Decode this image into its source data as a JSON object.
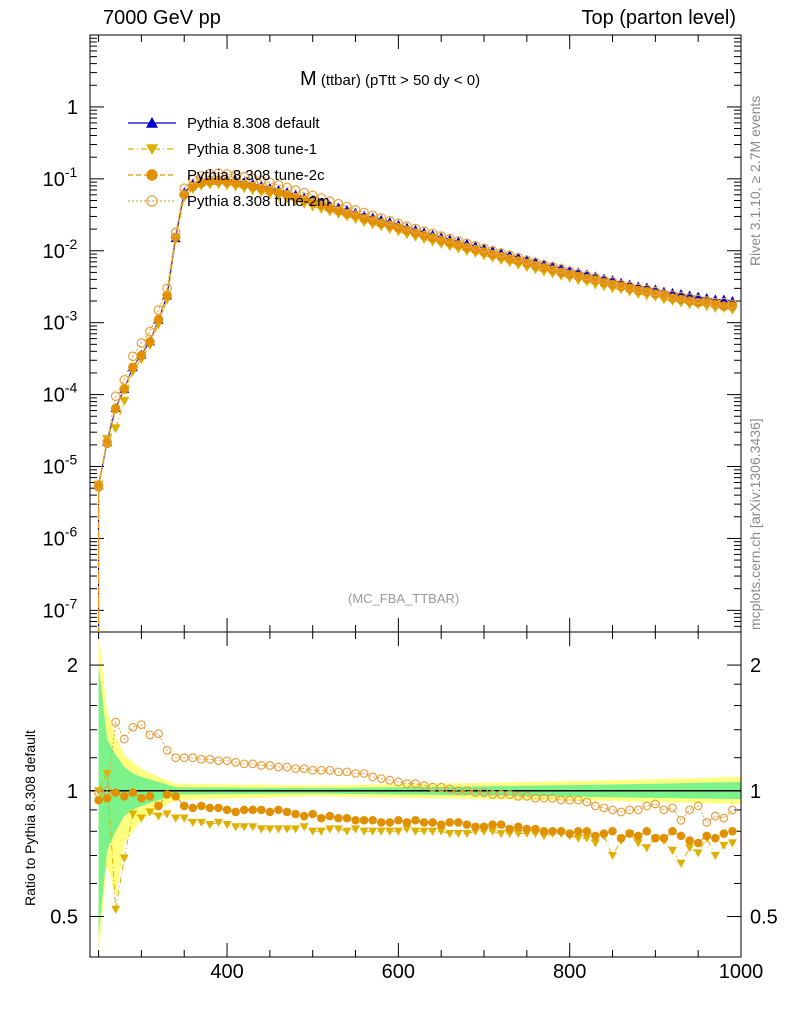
{
  "header": {
    "left": "7000 GeV pp",
    "right": "Top (parton level)"
  },
  "side_labels": {
    "rivet": "Rivet 3.1.10, ≥ 2.7M events",
    "mcplots": "mcplots.cern.ch [arXiv:1306.3436]"
  },
  "watermark": "(MC_FBA_TTBAR)",
  "colors": {
    "default": "#0000cc",
    "tune1": "#e0b000",
    "tune2c": "#e09000",
    "tune2m": "#e8a040",
    "band_inner": "#7cf28a",
    "band_outer": "#ffff80"
  },
  "chart_data": [
    {
      "type": "line",
      "title_main": "M",
      "title_sub": "(ttbar) (pTtt > 50 dy < 0)",
      "xlabel": "",
      "ylabel": "",
      "xlim": [
        240,
        1000
      ],
      "ylim": [
        5e-08,
        10
      ],
      "yscale": "log",
      "yticks": [
        "10^-7",
        "10^-6",
        "10^-5",
        "10^-4",
        "10^-3",
        "10^-2",
        "10^-1",
        "1"
      ],
      "legend": {
        "placement": "top-left",
        "entries": [
          "Pythia 8.308 default",
          "Pythia 8.308 tune-1",
          "Pythia 8.308 tune-2c",
          "Pythia 8.308 tune-2m"
        ]
      },
      "x": [
        250,
        260,
        270,
        280,
        290,
        300,
        310,
        320,
        330,
        340,
        350,
        360,
        370,
        380,
        390,
        400,
        410,
        420,
        430,
        440,
        450,
        460,
        470,
        480,
        490,
        500,
        510,
        520,
        530,
        540,
        550,
        560,
        570,
        580,
        590,
        600,
        610,
        620,
        630,
        640,
        650,
        660,
        670,
        680,
        690,
        700,
        710,
        720,
        730,
        740,
        750,
        760,
        770,
        780,
        790,
        800,
        810,
        820,
        830,
        840,
        850,
        860,
        870,
        880,
        890,
        900,
        910,
        920,
        930,
        940,
        950,
        960,
        970,
        980,
        990
      ],
      "series": [
        {
          "name": "Pythia 8.308 default",
          "marker": "triangle-up",
          "values": [
            5.5e-06,
            2.2e-05,
            6.5e-05,
            0.00012,
            0.00024,
            0.00036,
            0.00055,
            0.0011,
            0.0024,
            0.015,
            0.065,
            0.085,
            0.095,
            0.1,
            0.1,
            0.098,
            0.095,
            0.09,
            0.085,
            0.08,
            0.075,
            0.07,
            0.065,
            0.06,
            0.055,
            0.051,
            0.047,
            0.043,
            0.04,
            0.037,
            0.034,
            0.031,
            0.029,
            0.027,
            0.025,
            0.023,
            0.021,
            0.0195,
            0.018,
            0.0167,
            0.0155,
            0.0144,
            0.0134,
            0.0125,
            0.0116,
            0.0108,
            0.01,
            0.0093,
            0.0087,
            0.0081,
            0.0075,
            0.007,
            0.0065,
            0.0061,
            0.0057,
            0.0053,
            0.005,
            0.0047,
            0.0044,
            0.0041,
            0.0039,
            0.0036,
            0.0034,
            0.0032,
            0.0031,
            0.0029,
            0.0027,
            0.0026,
            0.0025,
            0.0024,
            0.0023,
            0.0022,
            0.0021,
            0.0021,
            0.002
          ]
        },
        {
          "name": "Pythia 8.308 tune-1",
          "marker": "triangle-down",
          "values": [
            5.6e-06,
            2.4e-05,
            3.4e-05,
            8.2e-05,
            0.00021,
            0.00031,
            0.00049,
            0.00095,
            0.0021,
            0.0142,
            0.056,
            0.072,
            0.08,
            0.083,
            0.084,
            0.081,
            0.078,
            0.074,
            0.069,
            0.065,
            0.061,
            0.057,
            0.053,
            0.049,
            0.045,
            0.041,
            0.038,
            0.035,
            0.0325,
            0.03,
            0.0275,
            0.025,
            0.0233,
            0.0217,
            0.02,
            0.0185,
            0.0169,
            0.0157,
            0.0145,
            0.0134,
            0.0124,
            0.0115,
            0.0107,
            0.0099,
            0.0093,
            0.0086,
            0.008,
            0.0074,
            0.0069,
            0.0064,
            0.0059,
            0.0055,
            0.0051,
            0.0048,
            0.0045,
            0.0042,
            0.0039,
            0.0037,
            0.0034,
            0.0032,
            0.003,
            0.0029,
            0.0027,
            0.0025,
            0.0024,
            0.0023,
            0.0021,
            0.002,
            0.0019,
            0.0018,
            0.0018,
            0.0017,
            0.0016,
            0.0016,
            0.0015
          ]
        },
        {
          "name": "Pythia 8.308 tune-2c",
          "marker": "circle",
          "values": [
            5.2e-06,
            2.1e-05,
            6.4e-05,
            0.00012,
            0.00024,
            0.00035,
            0.00054,
            0.0011,
            0.0024,
            0.0155,
            0.06,
            0.078,
            0.088,
            0.092,
            0.093,
            0.09,
            0.087,
            0.083,
            0.078,
            0.074,
            0.069,
            0.064,
            0.06,
            0.055,
            0.051,
            0.047,
            0.043,
            0.039,
            0.036,
            0.033,
            0.031,
            0.028,
            0.026,
            0.024,
            0.0225,
            0.0208,
            0.0191,
            0.0176,
            0.0163,
            0.015,
            0.0139,
            0.0129,
            0.012,
            0.0111,
            0.0104,
            0.0096,
            0.0089,
            0.0083,
            0.0077,
            0.0072,
            0.0067,
            0.0062,
            0.0058,
            0.0054,
            0.005,
            0.0047,
            0.0044,
            0.0041,
            0.0039,
            0.0036,
            0.0034,
            0.0032,
            0.003,
            0.0028,
            0.0027,
            0.0025,
            0.0024,
            0.0022,
            0.0021,
            0.002,
            0.0019,
            0.0019,
            0.0018,
            0.0017,
            0.0017
          ]
        },
        {
          "name": "Pythia 8.308 tune-2m",
          "marker": "open-circle",
          "values": [
            5.5e-06,
            2.2e-05,
            9.5e-05,
            0.00016,
            0.00034,
            0.00052,
            0.00075,
            0.0015,
            0.003,
            0.018,
            0.074,
            0.098,
            0.11,
            0.118,
            0.12,
            0.117,
            0.113,
            0.107,
            0.101,
            0.095,
            0.089,
            0.082,
            0.076,
            0.07,
            0.064,
            0.059,
            0.054,
            0.049,
            0.045,
            0.041,
            0.037,
            0.034,
            0.031,
            0.0285,
            0.026,
            0.024,
            0.022,
            0.0203,
            0.0188,
            0.0174,
            0.016,
            0.0148,
            0.0137,
            0.0127,
            0.0117,
            0.0108,
            0.01,
            0.0093,
            0.0086,
            0.008,
            0.0074,
            0.0069,
            0.0064,
            0.006,
            0.0056,
            0.0052,
            0.0048,
            0.0045,
            0.0042,
            0.0039,
            0.0037,
            0.0034,
            0.0032,
            0.003,
            0.0029,
            0.0027,
            0.0025,
            0.0024,
            0.0023,
            0.0022,
            0.0021,
            0.002,
            0.0019,
            0.0019,
            0.0018
          ]
        }
      ]
    },
    {
      "type": "line",
      "ylabel": "Ratio to Pythia 8.308 default",
      "xlim": [
        240,
        1000
      ],
      "ylim": [
        0.4,
        2.4
      ],
      "yscale": "log",
      "xticks": [
        "400",
        "600",
        "800",
        "1000"
      ],
      "yticks": [
        "0.5",
        "1",
        "2"
      ],
      "x": [
        250,
        260,
        270,
        280,
        290,
        300,
        310,
        320,
        330,
        340,
        350,
        360,
        370,
        380,
        390,
        400,
        410,
        420,
        430,
        440,
        450,
        460,
        470,
        480,
        490,
        500,
        510,
        520,
        530,
        540,
        550,
        560,
        570,
        580,
        590,
        600,
        610,
        620,
        630,
        640,
        650,
        660,
        670,
        680,
        690,
        700,
        710,
        720,
        730,
        740,
        750,
        760,
        770,
        780,
        790,
        800,
        810,
        820,
        830,
        840,
        850,
        860,
        870,
        880,
        890,
        900,
        910,
        920,
        930,
        940,
        950,
        960,
        970,
        980,
        990
      ],
      "band": {
        "inner": [
          [
            250,
            0.45,
            2.0
          ],
          [
            260,
            0.72,
            1.33
          ],
          [
            270,
            0.8,
            1.22
          ],
          [
            280,
            0.87,
            1.14
          ],
          [
            290,
            0.9,
            1.1
          ],
          [
            300,
            0.92,
            1.08
          ],
          [
            320,
            0.95,
            1.05
          ],
          [
            340,
            0.98,
            1.02
          ],
          [
            500,
            0.985,
            1.015
          ],
          [
            700,
            0.975,
            1.025
          ],
          [
            850,
            0.965,
            1.035
          ],
          [
            1000,
            0.955,
            1.05
          ]
        ],
        "outer": [
          [
            250,
            0.4,
            2.4
          ],
          [
            260,
            0.67,
            1.55
          ],
          [
            270,
            0.55,
            1.35
          ],
          [
            280,
            0.75,
            1.22
          ],
          [
            290,
            0.8,
            1.17
          ],
          [
            300,
            0.85,
            1.13
          ],
          [
            320,
            0.9,
            1.08
          ],
          [
            340,
            0.95,
            1.04
          ],
          [
            500,
            0.97,
            1.03
          ],
          [
            700,
            0.955,
            1.045
          ],
          [
            850,
            0.945,
            1.06
          ],
          [
            1000,
            0.93,
            1.08
          ]
        ]
      },
      "series": [
        {
          "name": "Pythia 8.308 tune-1",
          "marker": "triangle-down",
          "values": [
            1.0,
            1.1,
            0.52,
            0.69,
            0.88,
            0.86,
            0.89,
            0.87,
            0.88,
            0.86,
            0.86,
            0.84,
            0.84,
            0.83,
            0.84,
            0.83,
            0.82,
            0.82,
            0.82,
            0.81,
            0.81,
            0.81,
            0.81,
            0.81,
            0.82,
            0.8,
            0.8,
            0.81,
            0.81,
            0.8,
            0.81,
            0.8,
            0.8,
            0.8,
            0.8,
            0.8,
            0.81,
            0.8,
            0.8,
            0.8,
            0.8,
            0.79,
            0.79,
            0.79,
            0.8,
            0.8,
            0.8,
            0.79,
            0.79,
            0.79,
            0.79,
            0.79,
            0.78,
            0.79,
            0.79,
            0.78,
            0.77,
            0.77,
            0.75,
            0.78,
            0.7,
            0.76,
            0.79,
            0.75,
            0.73,
            0.77,
            0.76,
            0.72,
            0.67,
            0.73,
            0.71,
            0.77,
            0.7,
            0.74,
            0.75
          ]
        },
        {
          "name": "Pythia 8.308 tune-2c",
          "marker": "circle",
          "values": [
            0.95,
            0.96,
            0.99,
            0.97,
            0.99,
            0.96,
            0.97,
            0.92,
            0.98,
            0.97,
            0.92,
            0.91,
            0.92,
            0.91,
            0.91,
            0.9,
            0.89,
            0.9,
            0.9,
            0.9,
            0.89,
            0.9,
            0.89,
            0.88,
            0.87,
            0.88,
            0.86,
            0.87,
            0.86,
            0.86,
            0.85,
            0.85,
            0.85,
            0.84,
            0.84,
            0.85,
            0.84,
            0.85,
            0.84,
            0.84,
            0.83,
            0.84,
            0.84,
            0.83,
            0.82,
            0.82,
            0.83,
            0.83,
            0.81,
            0.82,
            0.81,
            0.81,
            0.8,
            0.8,
            0.8,
            0.79,
            0.8,
            0.8,
            0.78,
            0.79,
            0.8,
            0.77,
            0.79,
            0.78,
            0.8,
            0.77,
            0.77,
            0.8,
            0.78,
            0.76,
            0.75,
            0.78,
            0.77,
            0.79,
            0.8
          ]
        },
        {
          "name": "Pythia 8.308 tune-2m",
          "marker": "open-circle",
          "values": [
            0.99,
            1.0,
            1.46,
            1.33,
            1.42,
            1.44,
            1.36,
            1.37,
            1.25,
            1.2,
            1.2,
            1.2,
            1.19,
            1.19,
            1.18,
            1.18,
            1.17,
            1.16,
            1.16,
            1.15,
            1.15,
            1.14,
            1.14,
            1.13,
            1.13,
            1.12,
            1.12,
            1.12,
            1.11,
            1.11,
            1.1,
            1.1,
            1.08,
            1.07,
            1.06,
            1.05,
            1.04,
            1.04,
            1.03,
            1.02,
            1.02,
            1.01,
            1.0,
            1.0,
            0.99,
            0.99,
            0.98,
            0.98,
            0.98,
            0.97,
            0.97,
            0.96,
            0.96,
            0.96,
            0.95,
            0.95,
            0.95,
            0.94,
            0.92,
            0.91,
            0.9,
            0.89,
            0.9,
            0.9,
            0.92,
            0.93,
            0.9,
            0.91,
            0.85,
            0.9,
            0.92,
            0.84,
            0.87,
            0.86,
            0.9
          ]
        }
      ]
    }
  ]
}
